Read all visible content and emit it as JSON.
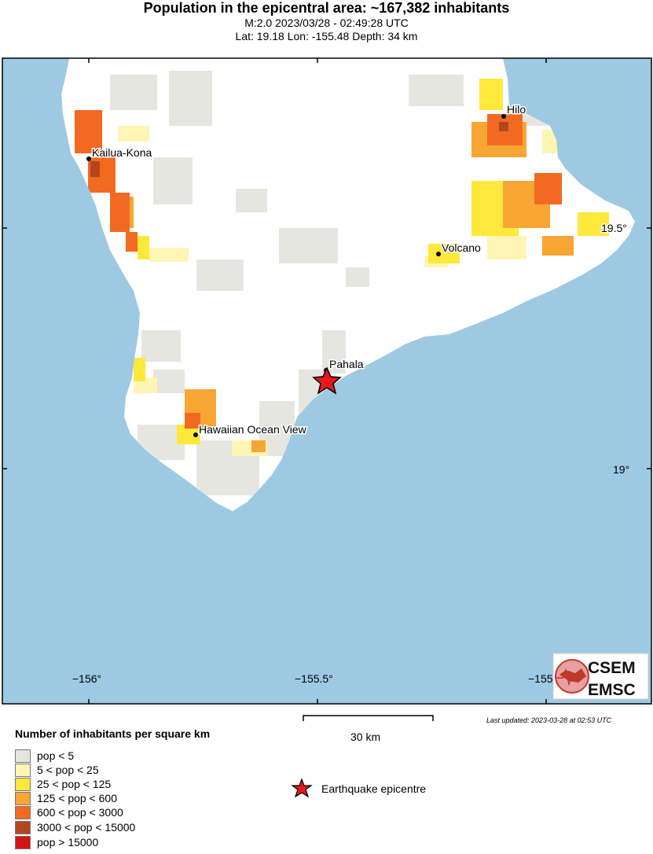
{
  "header": {
    "title": "Population in the epicentral area: ~167,382 inhabitants",
    "line2": "M:2.0 2023/03/28 - 02:49:28 UTC",
    "line3": "Lat: 19.18 Lon: -155.48 Depth: 34 km"
  },
  "map": {
    "ocean_color": "#9ec9e2",
    "land_color": "#ffffff",
    "lon_ticks": [
      "−156°",
      "−155.5°",
      "−155"
    ],
    "lat_ticks": [
      "19.5°",
      "19°"
    ],
    "places": [
      {
        "name": "Hilo"
      },
      {
        "name": "Kailua-Kona"
      },
      {
        "name": "19.5°"
      },
      {
        "name": "Volcano"
      },
      {
        "name": "Pahala"
      },
      {
        "name": "Hawaiian Ocean View"
      }
    ],
    "epicentre": {
      "lat": 19.18,
      "lon": -155.48
    }
  },
  "logo": {
    "line1": "CSEM",
    "line2": "EMSC"
  },
  "scale_bar": {
    "label": "30 km"
  },
  "last_updated": "Last updated: 2023-03-28 at 02:53 UTC",
  "legend": {
    "title": "Number of inhabitants per square km",
    "items": [
      {
        "label": "pop < 5",
        "color": "#e6e6e1"
      },
      {
        "label": "5 < pop < 25",
        "color": "#fff5b4"
      },
      {
        "label": "25 < pop < 125",
        "color": "#ffe83c"
      },
      {
        "label": "125 < pop < 600",
        "color": "#f7a634"
      },
      {
        "label": "600 < pop < 3000",
        "color": "#f26a22"
      },
      {
        "label": "3000 < pop < 15000",
        "color": "#b4461c"
      },
      {
        "label": "pop > 15000",
        "color": "#d21414"
      }
    ]
  },
  "epicentre_legend": {
    "label": "Earthquake epicentre",
    "color": "#e41a1c"
  }
}
